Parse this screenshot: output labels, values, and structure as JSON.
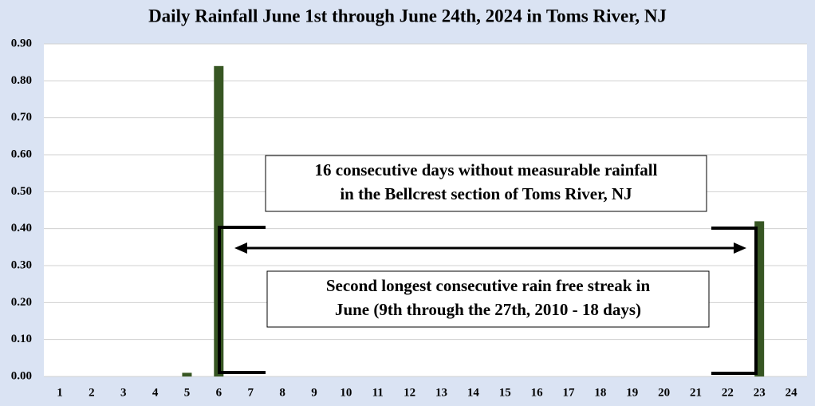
{
  "chart_data": {
    "type": "bar",
    "title": "Daily Rainfall June 1st through June 24th, 2024 in Toms River, NJ",
    "categories": [
      "1",
      "2",
      "3",
      "4",
      "5",
      "6",
      "7",
      "8",
      "9",
      "10",
      "11",
      "12",
      "13",
      "14",
      "15",
      "16",
      "17",
      "18",
      "19",
      "20",
      "21",
      "22",
      "23",
      "24"
    ],
    "values": [
      0,
      0,
      0,
      0,
      0.01,
      0.84,
      0,
      0,
      0,
      0,
      0,
      0,
      0,
      0,
      0,
      0,
      0,
      0,
      0,
      0,
      0,
      0,
      0.42,
      0
    ],
    "color": "#375623",
    "ylim": [
      0,
      0.9
    ],
    "yticks": [
      {
        "value": 0,
        "label": "0.00"
      },
      {
        "value": 0.1,
        "label": "0.10"
      },
      {
        "value": 0.2,
        "label": "0.20"
      },
      {
        "value": 0.3,
        "label": "0.30"
      },
      {
        "value": 0.4,
        "label": "0.40"
      },
      {
        "value": 0.5,
        "label": "0.50"
      },
      {
        "value": 0.6,
        "label": "0.60"
      },
      {
        "value": 0.7,
        "label": "0.70"
      },
      {
        "value": 0.8,
        "label": "0.80"
      },
      {
        "value": 0.9,
        "label": "0.90"
      }
    ],
    "grid": true,
    "annotations": [
      {
        "lines": [
          "16 consecutive days without measurable rainfall",
          "in the Bellcrest section of Toms River, NJ"
        ]
      },
      {
        "lines": [
          "Second longest consecutive rain free streak in",
          "June (9th through the 27th, 2010 - 18 days)"
        ]
      }
    ]
  }
}
